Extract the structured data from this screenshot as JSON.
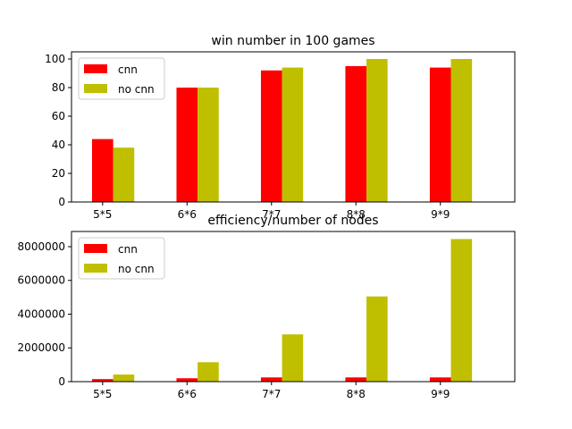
{
  "chart_data": [
    {
      "type": "bar",
      "title": "win number in 100 games",
      "xlabel": "",
      "ylabel": "",
      "categories": [
        "5*5",
        "6*6",
        "7*7",
        "8*8",
        "9*9"
      ],
      "series": [
        {
          "name": "cnn",
          "values": [
            44,
            80,
            92,
            95,
            94
          ],
          "color": "#ff0000"
        },
        {
          "name": "no cnn",
          "values": [
            38,
            80,
            94,
            100,
            100
          ],
          "color": "#bfbf00"
        }
      ],
      "ylim": [
        0,
        105
      ],
      "yticks": [
        0,
        20,
        40,
        60,
        80,
        100
      ],
      "grid": false,
      "legend_position": "top-left"
    },
    {
      "type": "bar",
      "title": "efficiency/number of nodes",
      "xlabel": "",
      "ylabel": "",
      "categories": [
        "5*5",
        "6*6",
        "7*7",
        "8*8",
        "9*9"
      ],
      "series": [
        {
          "name": "cnn",
          "values": [
            150000,
            200000,
            250000,
            250000,
            250000
          ],
          "color": "#ff0000"
        },
        {
          "name": "no cnn",
          "values": [
            420000,
            1150000,
            2800000,
            5050000,
            8450000
          ],
          "color": "#bfbf00"
        }
      ],
      "ylim": [
        0,
        8900000
      ],
      "yticks": [
        0,
        2000000,
        4000000,
        6000000,
        8000000
      ],
      "grid": false,
      "legend_position": "top-left"
    }
  ]
}
